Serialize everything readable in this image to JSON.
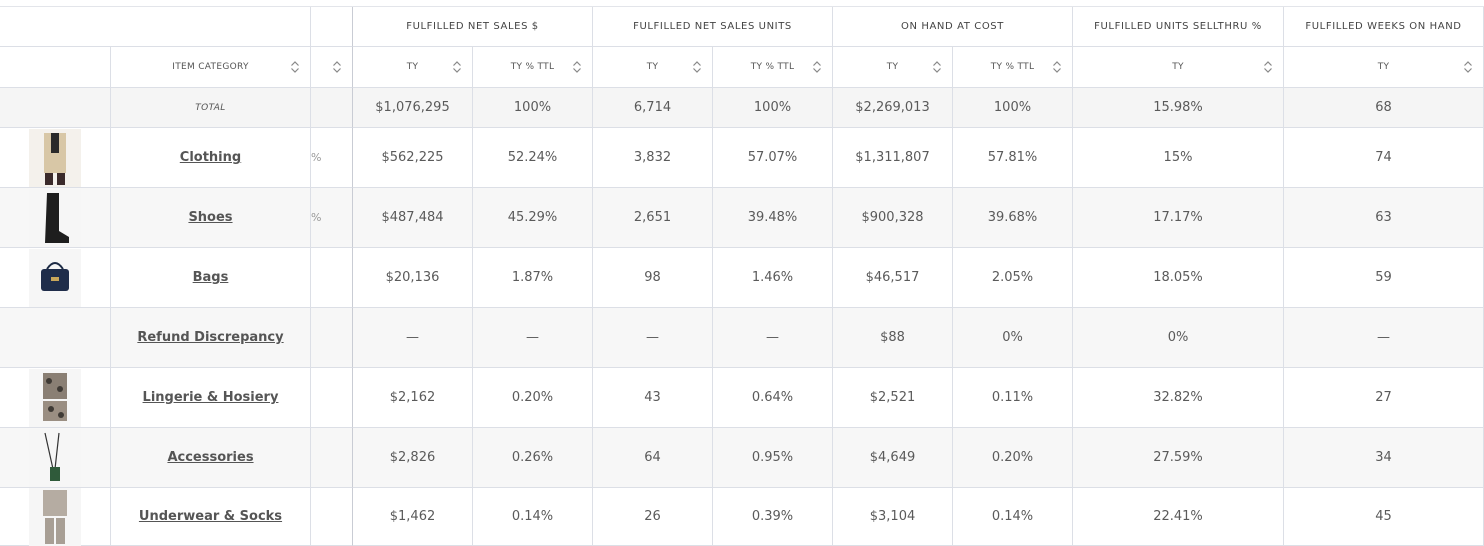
{
  "groups": [
    "FULFILLED NET SALES $",
    "FULFILLED NET SALES UNITS",
    "ON HAND AT COST",
    "FULFILLED UNITS SELLTHRU %",
    "FULFILLED WEEKS ON HAND"
  ],
  "subheaders": {
    "item_category": "ITEM CATEGORY",
    "cols": [
      "TY",
      "TY % TTL",
      "TY",
      "TY % TTL",
      "TY",
      "TY % TTL",
      "TY",
      "TY"
    ]
  },
  "total": {
    "label": "TOTAL",
    "values": [
      "$1,076,295",
      "100%",
      "6,714",
      "100%",
      "$2,269,013",
      "100%",
      "15.98%",
      "68"
    ]
  },
  "rows": [
    {
      "label": "Clothing",
      "clip": "%",
      "values": [
        "$562,225",
        "52.24%",
        "3,832",
        "57.07%",
        "$1,311,807",
        "57.81%",
        "15%",
        "74"
      ]
    },
    {
      "label": "Shoes",
      "clip": "%",
      "values": [
        "$487,484",
        "45.29%",
        "2,651",
        "39.48%",
        "$900,328",
        "39.68%",
        "17.17%",
        "63"
      ]
    },
    {
      "label": "Bags",
      "clip": "",
      "values": [
        "$20,136",
        "1.87%",
        "98",
        "1.46%",
        "$46,517",
        "2.05%",
        "18.05%",
        "59"
      ]
    },
    {
      "label": "Refund Discrepancy",
      "clip": "",
      "values": [
        "—",
        "—",
        "—",
        "—",
        "$88",
        "0%",
        "0%",
        "—"
      ]
    },
    {
      "label": "Lingerie & Hosiery",
      "clip": "",
      "values": [
        "$2,162",
        "0.20%",
        "43",
        "0.64%",
        "$2,521",
        "0.11%",
        "32.82%",
        "27"
      ]
    },
    {
      "label": "Accessories",
      "clip": "",
      "values": [
        "$2,826",
        "0.26%",
        "64",
        "0.95%",
        "$4,649",
        "0.20%",
        "27.59%",
        "34"
      ]
    },
    {
      "label": "Underwear & Socks",
      "clip": "",
      "values": [
        "$1,462",
        "0.14%",
        "26",
        "0.39%",
        "$3,104",
        "0.14%",
        "22.41%",
        "45"
      ]
    }
  ]
}
